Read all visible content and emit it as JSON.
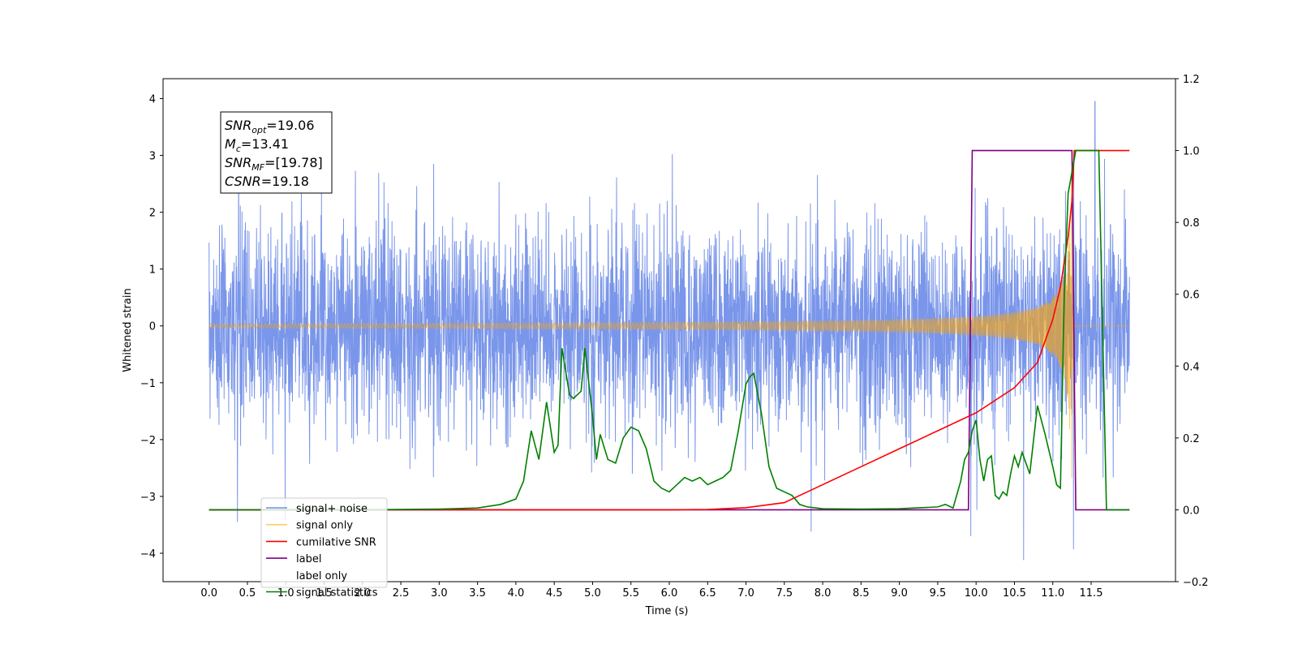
{
  "chart_data": {
    "type": "line",
    "title": "",
    "xlabel": "Time (s)",
    "ylabel_left": "Whitened strain",
    "ylabel_right": "",
    "xlim": [
      -0.6,
      12.6
    ],
    "ylim_left": [
      -4.5,
      4.35
    ],
    "ylim_right": [
      -0.2,
      1.2
    ],
    "x_ticks": [
      0.0,
      0.5,
      1.0,
      1.5,
      2.0,
      2.5,
      3.0,
      3.5,
      4.0,
      4.5,
      5.0,
      5.5,
      6.0,
      6.5,
      7.0,
      7.5,
      8.0,
      8.5,
      9.0,
      9.5,
      10.0,
      10.5,
      11.0,
      11.5
    ],
    "x_tick_labels": [
      "0.0",
      "0.5",
      "1.0",
      "1.5",
      "2.0",
      "2.5",
      "3.0",
      "3.5",
      "4.0",
      "4.5",
      "5.0",
      "5.5",
      "6.0",
      "6.5",
      "7.0",
      "7.5",
      "8.0",
      "8.5",
      "9.0",
      "9.5",
      "10.0",
      "10.5",
      "11.0",
      "11.5"
    ],
    "y_ticks_left": [
      4,
      3,
      2,
      1,
      0,
      -1,
      -2,
      -3,
      -4
    ],
    "y_tick_labels_left": [
      "4",
      "3",
      "2",
      "1",
      "0",
      "−1",
      "−2",
      "−3",
      "−4"
    ],
    "y_ticks_right": [
      1.2,
      1.0,
      0.8,
      0.6,
      0.4,
      0.2,
      0.0,
      -0.2
    ],
    "y_tick_labels_right": [
      "1.2",
      "1.0",
      "0.8",
      "0.6",
      "0.4",
      "0.2",
      "0.0",
      "−0.2"
    ],
    "grid": false,
    "legend_position": "lower-left",
    "annotation": {
      "lines": [
        {
          "sym": "SNR",
          "sub": "opt",
          "rest": "=19.06"
        },
        {
          "sym": "M",
          "sub": "c",
          "rest": "=13.41"
        },
        {
          "sym": "SNR",
          "sub": "MF",
          "rest": "=[19.78]"
        },
        {
          "sym": "CSNR",
          "sub": "",
          "rest": "=19.18"
        }
      ]
    },
    "series": [
      {
        "name": "signal+ noise",
        "axis": "left",
        "color": "#4169e1",
        "kind": "noise",
        "x_range": [
          0.0,
          12.0
        ],
        "envelope": "≈ ±2, extremes up to 3.95 and down to -4.12"
      },
      {
        "name": "signal only",
        "axis": "left",
        "color": "#ffa500",
        "kind": "chirp",
        "x_range": [
          0.0,
          12.0
        ],
        "merger_time": 11.25,
        "peak_amplitude": 3.0
      },
      {
        "name": "cumilative SNR",
        "axis": "right",
        "color": "#ff0000",
        "points": [
          [
            0,
            0
          ],
          [
            6.0,
            0.0
          ],
          [
            6.5,
            0.001
          ],
          [
            7.0,
            0.006
          ],
          [
            7.5,
            0.02
          ],
          [
            8.0,
            0.07
          ],
          [
            8.5,
            0.12
          ],
          [
            9.0,
            0.17
          ],
          [
            9.5,
            0.22
          ],
          [
            10.0,
            0.27
          ],
          [
            10.5,
            0.34
          ],
          [
            10.8,
            0.41
          ],
          [
            11.0,
            0.53
          ],
          [
            11.1,
            0.62
          ],
          [
            11.2,
            0.76
          ],
          [
            11.25,
            0.86
          ],
          [
            11.28,
            1.0
          ],
          [
            12.0,
            1.0
          ]
        ]
      },
      {
        "name": "label",
        "axis": "right",
        "color": "#800080",
        "points": [
          [
            0,
            0
          ],
          [
            9.9,
            0
          ],
          [
            9.95,
            1.0
          ],
          [
            11.25,
            1.0
          ],
          [
            11.3,
            0
          ],
          [
            12.0,
            0
          ]
        ]
      },
      {
        "name": "label only",
        "axis": "right",
        "color": "#808080",
        "points": []
      },
      {
        "name": "signal statistics",
        "axis": "right",
        "color": "#008000",
        "points": [
          [
            0,
            0
          ],
          [
            1,
            0
          ],
          [
            2,
            0
          ],
          [
            3.0,
            0.002
          ],
          [
            3.5,
            0.005
          ],
          [
            3.8,
            0.015
          ],
          [
            4.0,
            0.03
          ],
          [
            4.1,
            0.08
          ],
          [
            4.2,
            0.22
          ],
          [
            4.3,
            0.14
          ],
          [
            4.4,
            0.3
          ],
          [
            4.5,
            0.16
          ],
          [
            4.55,
            0.18
          ],
          [
            4.6,
            0.45
          ],
          [
            4.7,
            0.32
          ],
          [
            4.75,
            0.31
          ],
          [
            4.85,
            0.33
          ],
          [
            4.9,
            0.45
          ],
          [
            5.0,
            0.26
          ],
          [
            5.05,
            0.14
          ],
          [
            5.1,
            0.21
          ],
          [
            5.2,
            0.14
          ],
          [
            5.3,
            0.13
          ],
          [
            5.4,
            0.2
          ],
          [
            5.5,
            0.23
          ],
          [
            5.6,
            0.22
          ],
          [
            5.7,
            0.17
          ],
          [
            5.8,
            0.08
          ],
          [
            5.9,
            0.06
          ],
          [
            6.0,
            0.05
          ],
          [
            6.1,
            0.07
          ],
          [
            6.2,
            0.09
          ],
          [
            6.3,
            0.08
          ],
          [
            6.4,
            0.09
          ],
          [
            6.5,
            0.07
          ],
          [
            6.6,
            0.08
          ],
          [
            6.7,
            0.09
          ],
          [
            6.8,
            0.11
          ],
          [
            6.9,
            0.22
          ],
          [
            7.0,
            0.35
          ],
          [
            7.05,
            0.37
          ],
          [
            7.1,
            0.38
          ],
          [
            7.2,
            0.27
          ],
          [
            7.3,
            0.12
          ],
          [
            7.4,
            0.06
          ],
          [
            7.5,
            0.05
          ],
          [
            7.6,
            0.04
          ],
          [
            7.7,
            0.015
          ],
          [
            7.8,
            0.008
          ],
          [
            8.0,
            0.003
          ],
          [
            8.5,
            0.002
          ],
          [
            9.0,
            0.003
          ],
          [
            9.5,
            0.008
          ],
          [
            9.6,
            0.015
          ],
          [
            9.7,
            0.005
          ],
          [
            9.8,
            0.08
          ],
          [
            9.85,
            0.14
          ],
          [
            9.9,
            0.16
          ],
          [
            9.95,
            0.22
          ],
          [
            10.0,
            0.25
          ],
          [
            10.05,
            0.14
          ],
          [
            10.1,
            0.08
          ],
          [
            10.15,
            0.14
          ],
          [
            10.2,
            0.15
          ],
          [
            10.25,
            0.04
          ],
          [
            10.3,
            0.03
          ],
          [
            10.35,
            0.05
          ],
          [
            10.4,
            0.04
          ],
          [
            10.45,
            0.1
          ],
          [
            10.5,
            0.15
          ],
          [
            10.55,
            0.12
          ],
          [
            10.6,
            0.16
          ],
          [
            10.7,
            0.1
          ],
          [
            10.8,
            0.29
          ],
          [
            10.85,
            0.25
          ],
          [
            10.9,
            0.21
          ],
          [
            11.0,
            0.12
          ],
          [
            11.05,
            0.07
          ],
          [
            11.1,
            0.06
          ],
          [
            11.15,
            0.6
          ],
          [
            11.2,
            0.88
          ],
          [
            11.3,
            1.0
          ],
          [
            11.6,
            1.0
          ],
          [
            11.7,
            0
          ],
          [
            12.0,
            0
          ]
        ]
      }
    ]
  }
}
